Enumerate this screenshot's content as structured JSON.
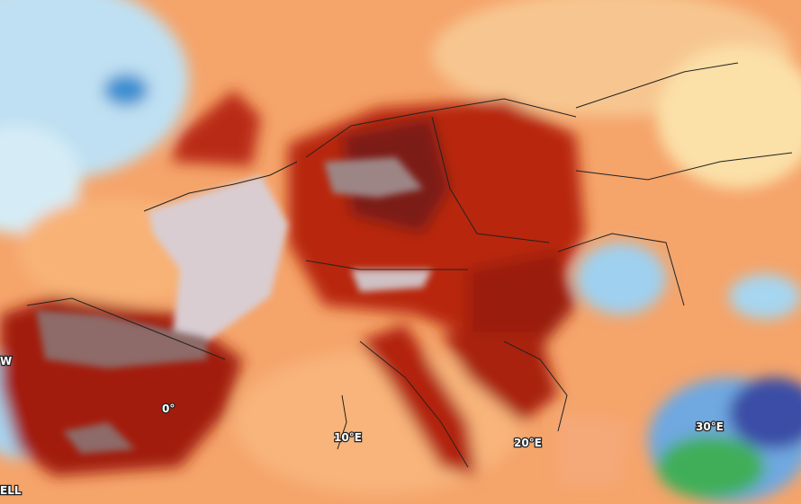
{
  "map": {
    "labels": [
      "W",
      "0°",
      "10°E",
      "20°E",
      "30°E",
      "ELL"
    ]
  }
}
